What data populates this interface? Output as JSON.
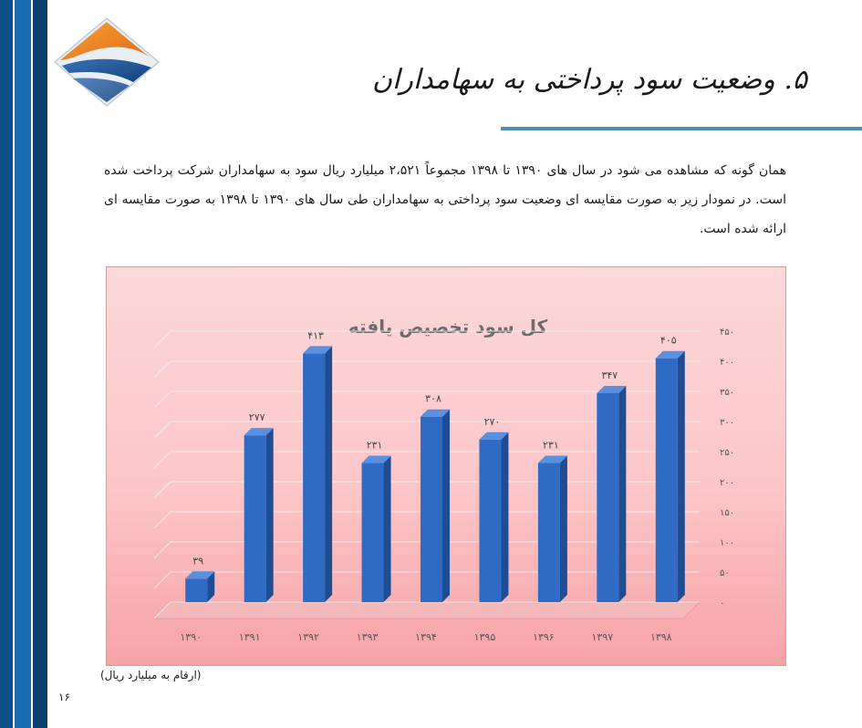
{
  "header": {
    "title": "۵. وضعیت سود پرداختی به سهامداران"
  },
  "body_text": "همان گونه که مشاهده می شود در سال های ۱۳۹۰ تا ۱۳۹۸ مجموعاً ۲،۵۲۱ میلیارد ریال سود به سهامداران شرکت پرداخت شده است. در نمودار زیر به صورت مقایسه ای وضعیت سود پرداختی به سهامداران طی سال های ۱۳۹۰ تا ۱۳۹۸ به صورت مقایسه ای ارائه شده است.",
  "chart_data": {
    "type": "bar",
    "title": "کل سود تخصیص یافته",
    "categories": [
      "۱۳۹۰",
      "۱۳۹۱",
      "۱۳۹۲",
      "۱۳۹۳",
      "۱۳۹۴",
      "۱۳۹۵",
      "۱۳۹۶",
      "۱۳۹۷",
      "۱۳۹۸"
    ],
    "values": [
      39,
      277,
      413,
      231,
      308,
      270,
      231,
      347,
      405
    ],
    "value_labels": [
      "۳۹",
      "۲۷۷",
      "۴۱۳",
      "۲۳۱",
      "۳۰۸",
      "۲۷۰",
      "۲۳۱",
      "۳۴۷",
      "۴۰۵"
    ],
    "yticks": [
      0,
      50,
      100,
      150,
      200,
      250,
      300,
      350,
      400,
      450
    ],
    "ytick_labels": [
      "۰",
      "۵۰",
      "۱۰۰",
      "۱۵۰",
      "۲۰۰",
      "۲۵۰",
      "۳۰۰",
      "۳۵۰",
      "۴۰۰",
      "۴۵۰"
    ],
    "ylim": [
      0,
      450
    ],
    "y_axis_side": "right",
    "grid": true,
    "legend": "none",
    "bar_color": "#2f6bc4"
  },
  "footer": {
    "note": "(ارقام به میلیارد ریال)",
    "page_number": "۱۶"
  }
}
